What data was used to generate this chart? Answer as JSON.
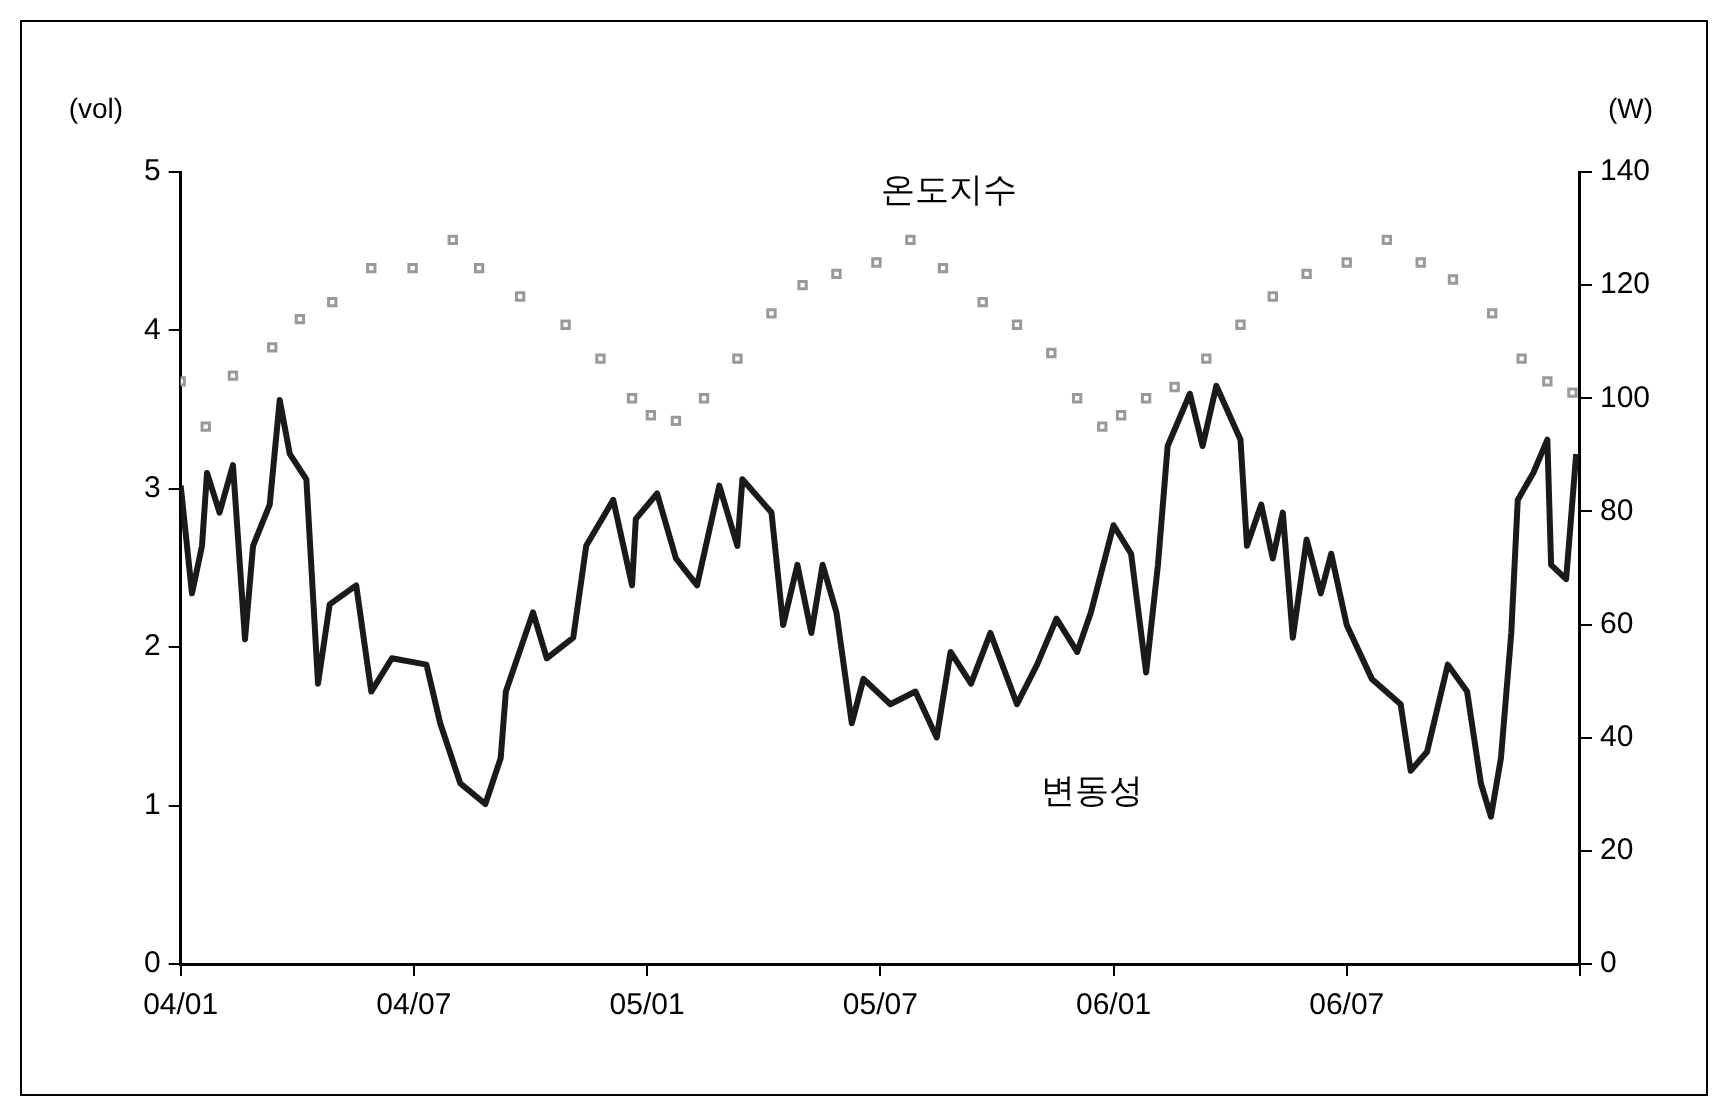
{
  "chart_data": {
    "type": "line",
    "ylabel": "(vol)",
    "y2label": "(W)",
    "legend": false,
    "grid": false,
    "xlim": [
      "2004-01",
      "2007-01"
    ],
    "xticks": [
      {
        "value": "2004-01",
        "label": "04/01"
      },
      {
        "value": "2004-07",
        "label": "04/07"
      },
      {
        "value": "2005-01",
        "label": "05/01"
      },
      {
        "value": "2005-07",
        "label": "05/07"
      },
      {
        "value": "2006-01",
        "label": "06/01"
      },
      {
        "value": "2006-07",
        "label": "06/07"
      },
      {
        "value": "2007-01",
        "label": null
      }
    ],
    "ylim": [
      0,
      5
    ],
    "yticks": [
      0,
      1,
      2,
      3,
      4,
      5
    ],
    "y2lim": [
      0,
      140
    ],
    "y2ticks": [
      0,
      20,
      40,
      60,
      80,
      100,
      120,
      140
    ],
    "series": [
      {
        "name": "온도지수",
        "type": "scatter",
        "axis": "y2",
        "marker": "square",
        "color": "#999999",
        "x": [
          "2004-01-01",
          "2004-01-21",
          "2004-02-11",
          "2004-03-12",
          "2004-04-03",
          "2004-04-28",
          "2004-05-29",
          "2004-06-30",
          "2004-08-01",
          "2004-08-22",
          "2004-09-23",
          "2004-10-29",
          "2004-11-25",
          "2004-12-20",
          "2005-01-04",
          "2005-01-24",
          "2005-02-14",
          "2005-03-11",
          "2005-04-07",
          "2005-05-01",
          "2005-05-28",
          "2005-06-28",
          "2005-07-25",
          "2005-08-20",
          "2005-09-20",
          "2005-10-17",
          "2005-11-13",
          "2005-12-03",
          "2005-12-23",
          "2006-01-07",
          "2006-01-27",
          "2006-02-17",
          "2006-03-13",
          "2006-04-09",
          "2006-05-04",
          "2006-05-31",
          "2006-07-01",
          "2006-08-02",
          "2006-08-29",
          "2006-09-23",
          "2006-10-24",
          "2006-11-16",
          "2006-12-06",
          "2006-12-26"
        ],
        "values": [
          103,
          95,
          104,
          109,
          114,
          117,
          123,
          123,
          128,
          123,
          118,
          113,
          107,
          100,
          97,
          96,
          100,
          107,
          115,
          120,
          122,
          124,
          128,
          123,
          117,
          113,
          108,
          100,
          95,
          97,
          100,
          102,
          107,
          113,
          118,
          122,
          124,
          128,
          124,
          121,
          115,
          107,
          103,
          101
        ]
      },
      {
        "name": "변동성",
        "axis": "y",
        "marker": "none",
        "color": "#1a1a1a",
        "x": [
          "2004-01-01",
          "2004-01-10",
          "2004-01-18",
          "2004-01-22",
          "2004-02-01",
          "2004-02-11",
          "2004-02-20",
          "2004-02-26",
          "2004-03-10",
          "2004-03-18",
          "2004-03-26",
          "2004-04-08",
          "2004-04-17",
          "2004-04-26",
          "2004-05-17",
          "2004-05-29",
          "2004-06-14",
          "2004-07-11",
          "2004-07-22",
          "2004-08-07",
          "2004-08-27",
          "2004-09-08",
          "2004-09-12",
          "2004-10-03",
          "2004-10-14",
          "2004-11-04",
          "2004-11-14",
          "2004-12-05",
          "2004-12-20",
          "2004-12-23",
          "2005-01-09",
          "2005-01-24",
          "2005-02-09",
          "2005-02-25",
          "2005-03-11",
          "2005-03-15",
          "2005-04-07",
          "2005-04-16",
          "2005-04-27",
          "2005-05-08",
          "2005-05-17",
          "2005-05-28",
          "2005-06-09",
          "2005-06-18",
          "2005-07-09",
          "2005-07-29",
          "2005-08-15",
          "2005-08-26",
          "2005-09-11",
          "2005-09-26",
          "2005-10-17",
          "2005-11-02",
          "2005-11-17",
          "2005-12-03",
          "2005-12-14",
          "2006-01-01",
          "2006-01-15",
          "2006-01-27",
          "2006-02-05",
          "2006-02-12",
          "2006-02-28",
          "2006-03-10",
          "2006-03-21",
          "2006-04-09",
          "2006-04-14",
          "2006-04-25",
          "2006-05-04",
          "2006-05-12",
          "2006-05-20",
          "2006-05-31",
          "2006-06-11",
          "2006-06-19",
          "2006-07-01",
          "2006-07-21",
          "2006-08-13",
          "2006-08-21",
          "2006-09-03",
          "2006-09-19",
          "2006-10-04",
          "2006-10-15",
          "2006-10-23",
          "2006-10-31",
          "2006-11-08",
          "2006-11-13",
          "2006-11-25",
          "2006-12-06",
          "2006-12-09",
          "2006-12-21",
          "2006-12-29"
        ],
        "values": [
          3.02,
          2.34,
          2.64,
          3.1,
          2.85,
          3.15,
          2.05,
          2.64,
          2.9,
          3.56,
          3.22,
          3.06,
          1.77,
          2.27,
          2.39,
          1.72,
          1.93,
          1.89,
          1.52,
          1.14,
          1.01,
          1.3,
          1.72,
          2.22,
          1.93,
          2.06,
          2.64,
          2.93,
          2.39,
          2.81,
          2.97,
          2.56,
          2.39,
          3.02,
          2.64,
          3.06,
          2.85,
          2.14,
          2.52,
          2.09,
          2.52,
          2.22,
          1.52,
          1.8,
          1.64,
          1.72,
          1.43,
          1.97,
          1.77,
          2.09,
          1.64,
          1.89,
          2.18,
          1.97,
          2.22,
          2.77,
          2.59,
          1.84,
          2.52,
          3.27,
          3.6,
          3.27,
          3.65,
          3.31,
          2.64,
          2.9,
          2.56,
          2.85,
          2.06,
          2.68,
          2.34,
          2.59,
          2.14,
          1.8,
          1.64,
          1.22,
          1.34,
          1.89,
          1.72,
          1.14,
          0.93,
          1.3,
          2.09,
          2.93,
          3.1,
          3.31,
          2.52,
          2.43,
          3.22
        ]
      }
    ]
  }
}
